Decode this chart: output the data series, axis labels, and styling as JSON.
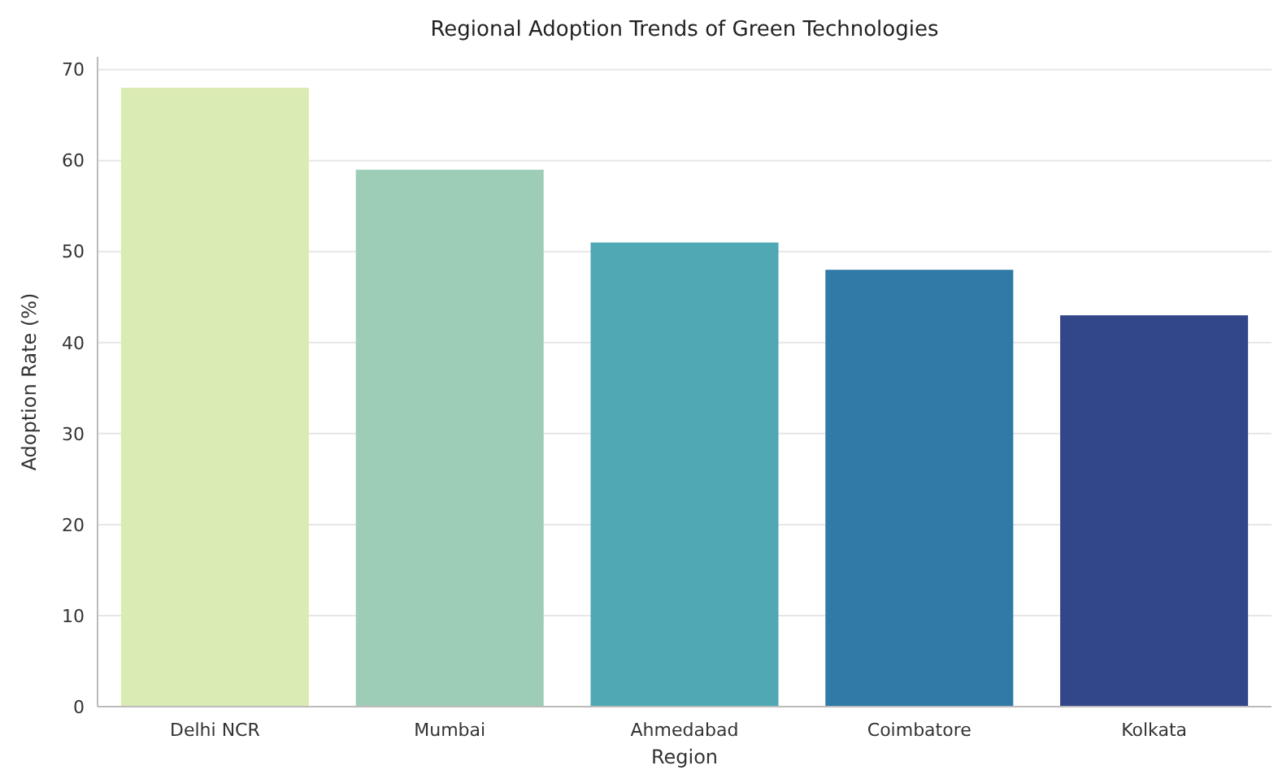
{
  "chart_data": {
    "type": "bar",
    "title": "Regional Adoption Trends of Green Technologies",
    "xlabel": "Region",
    "ylabel": "Adoption Rate (%)",
    "categories": [
      "Delhi NCR",
      "Mumbai",
      "Ahmedabad",
      "Coimbatore",
      "Kolkata"
    ],
    "values": [
      68,
      59,
      51,
      48,
      43
    ],
    "colors": [
      "#dbebb4",
      "#9dcdb7",
      "#4fa8b4",
      "#2f7aa6",
      "#32468a"
    ],
    "ylim": [
      0,
      71.4
    ],
    "yticks": [
      0,
      10,
      20,
      30,
      40,
      50,
      60,
      70
    ],
    "grid": "y"
  }
}
